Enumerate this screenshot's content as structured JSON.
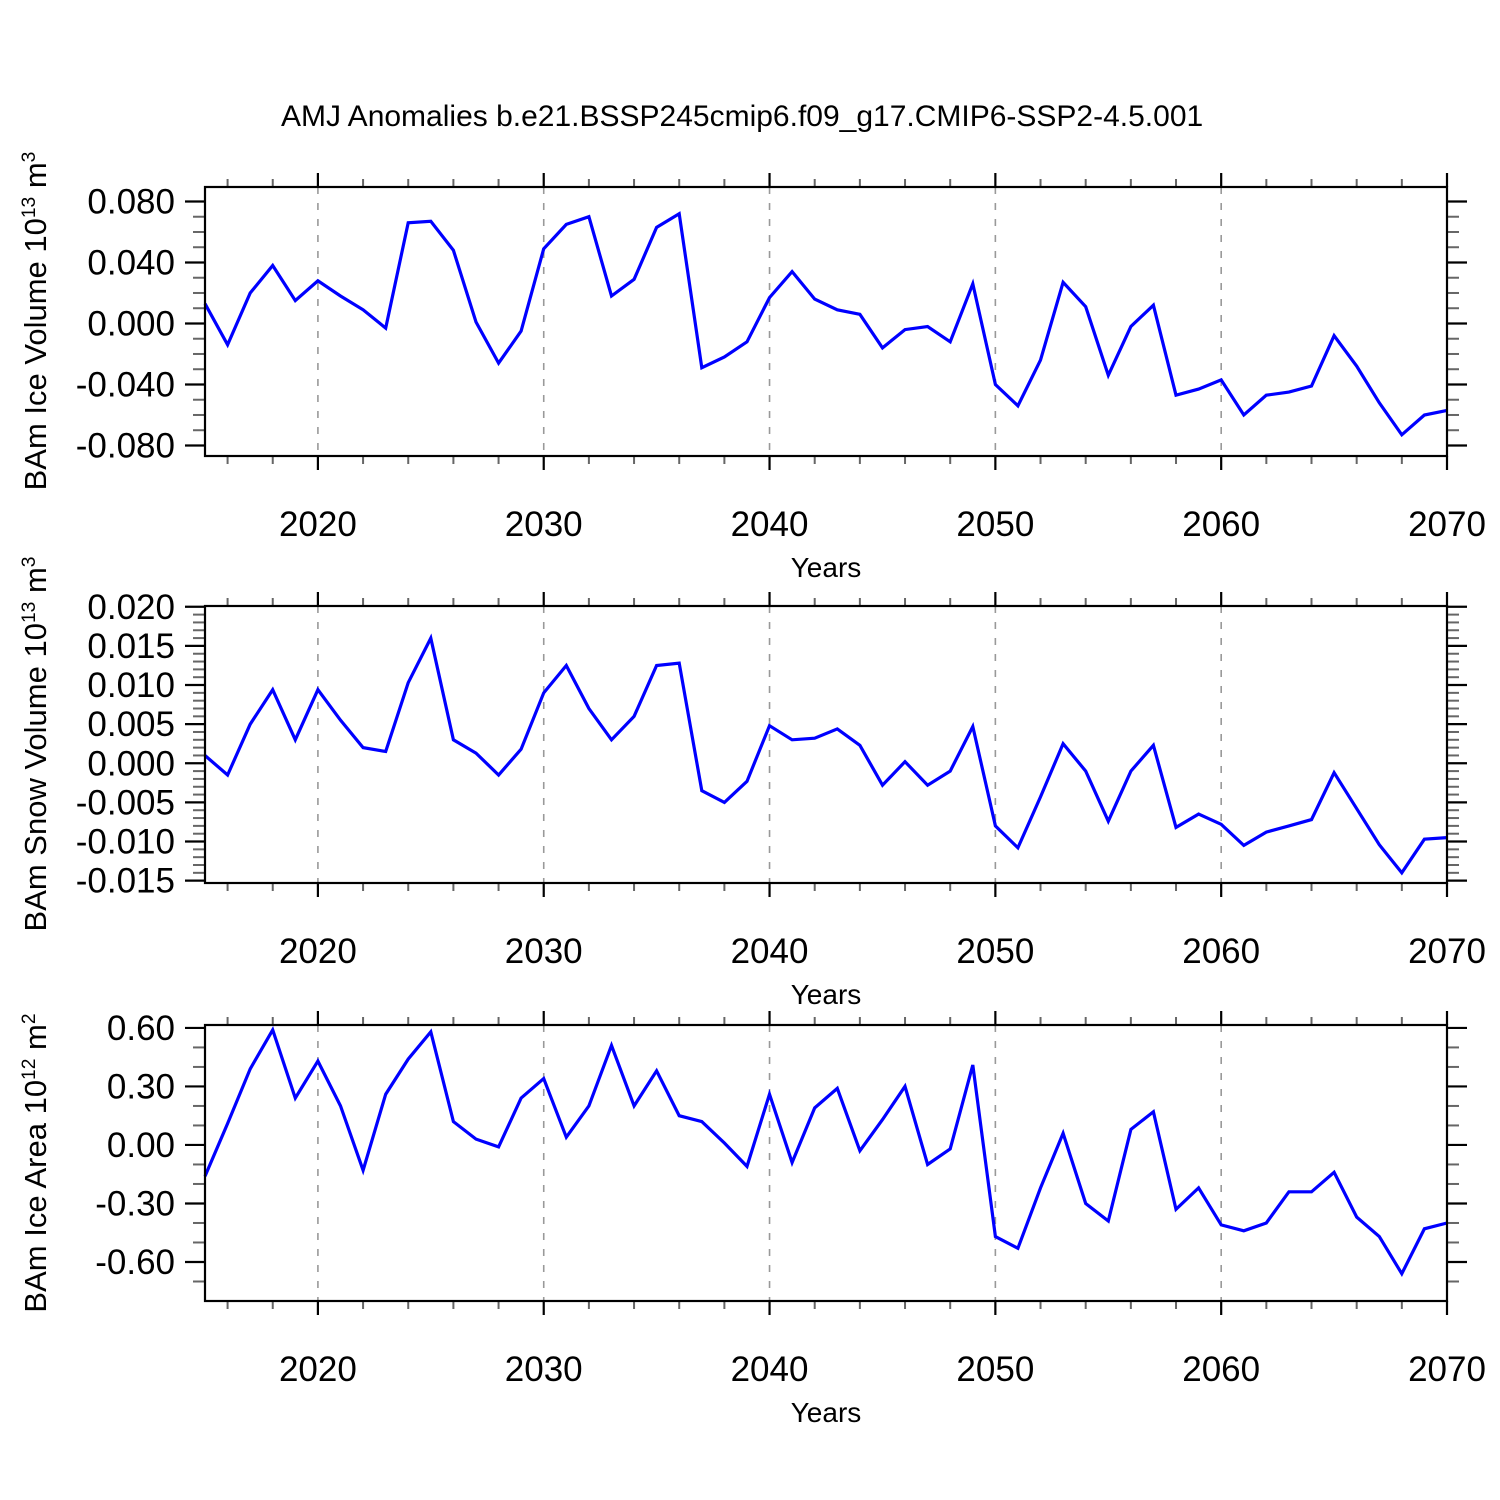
{
  "chart_data": {
    "type": "line",
    "title": "AMJ Anomalies b.e21.BSSP245cmip6.f09_g17.CMIP6-SSP2-4.5.001",
    "xlabel": "Years",
    "x_start": 2015,
    "x_end": 2070,
    "xticks": [
      2020,
      2030,
      2040,
      2050,
      2060,
      2070
    ],
    "xtick_labels": [
      "2020",
      "2030",
      "2040",
      "2050",
      "2060",
      "2070"
    ],
    "x_minor_step": 2,
    "gridline_years": [
      2020,
      2030,
      2040,
      2050,
      2060
    ],
    "line_color": "#0000ff",
    "gridline_color": "#999999",
    "axis_color": "#000000",
    "minor_tick_color": "#666666",
    "grid": true,
    "legend": "none",
    "panels": [
      {
        "name": "ice-volume",
        "ylabel_base": "BAm Ice Volume 10",
        "ylabel_exp": "13",
        "ylabel_unit": " m",
        "ylabel_unit_exp": "3",
        "ylim": [
          -0.0869,
          0.0895
        ],
        "yticks": [
          0.08,
          0.04,
          0.0,
          -0.04,
          -0.08
        ],
        "ytick_labels": [
          "0.080",
          "0.040",
          "0.000",
          "-0.040",
          "-0.080"
        ],
        "y_minor_step": 0.01,
        "values": [
          0.013,
          -0.014,
          0.02,
          0.038,
          0.015,
          0.028,
          0.018,
          0.009,
          -0.003,
          0.066,
          0.067,
          0.048,
          0.001,
          -0.026,
          -0.005,
          0.049,
          0.065,
          0.07,
          0.018,
          0.029,
          0.063,
          0.072,
          -0.029,
          -0.022,
          -0.012,
          0.017,
          0.034,
          0.016,
          0.009,
          0.006,
          -0.016,
          -0.004,
          -0.002,
          -0.012,
          0.026,
          -0.04,
          -0.054,
          -0.024,
          0.027,
          0.011,
          -0.034,
          -0.002,
          0.012,
          -0.047,
          -0.043,
          -0.037,
          -0.06,
          -0.047,
          -0.045,
          -0.041,
          -0.008,
          -0.028,
          -0.052,
          -0.073,
          -0.06,
          -0.057
        ]
      },
      {
        "name": "snow-volume",
        "ylabel_base": "BAm Snow Volume 10",
        "ylabel_exp": "13",
        "ylabel_unit": " m",
        "ylabel_unit_exp": "3",
        "ylim": [
          -0.0153,
          0.0201
        ],
        "yticks": [
          0.02,
          0.015,
          0.01,
          0.005,
          0.0,
          -0.005,
          -0.01,
          -0.015
        ],
        "ytick_labels": [
          "0.020",
          "0.015",
          "0.010",
          "0.005",
          "0.000",
          "-0.005",
          "-0.010",
          "-0.015"
        ],
        "y_minor_step": 0.001,
        "values": [
          0.001,
          -0.0015,
          0.005,
          0.0094,
          0.003,
          0.0094,
          0.0055,
          0.002,
          0.0015,
          0.0103,
          0.016,
          0.003,
          0.0013,
          -0.0015,
          0.0018,
          0.009,
          0.0125,
          0.007,
          0.003,
          0.006,
          0.0125,
          0.0128,
          -0.0035,
          -0.005,
          -0.0023,
          0.0048,
          0.003,
          0.0032,
          0.0044,
          0.0023,
          -0.0028,
          0.0002,
          -0.0028,
          -0.001,
          0.0047,
          -0.008,
          -0.0108,
          -0.0043,
          0.0025,
          -0.001,
          -0.0074,
          -0.001,
          0.0023,
          -0.0082,
          -0.0065,
          -0.0078,
          -0.0105,
          -0.0088,
          -0.008,
          -0.0072,
          -0.0012,
          -0.0058,
          -0.0104,
          -0.014,
          -0.0097,
          -0.0095
        ]
      },
      {
        "name": "ice-area",
        "ylabel_base": "BAm Ice Area 10",
        "ylabel_exp": "12",
        "ylabel_unit": " m",
        "ylabel_unit_exp": "2",
        "ylim": [
          -0.8,
          0.615
        ],
        "yticks": [
          0.6,
          0.3,
          0.0,
          -0.3,
          -0.6
        ],
        "ytick_labels": [
          "0.60",
          "0.30",
          "0.00",
          "-0.30",
          "-0.60"
        ],
        "y_minor_step": 0.1,
        "values": [
          -0.16,
          0.11,
          0.39,
          0.59,
          0.24,
          0.43,
          0.2,
          -0.13,
          0.26,
          0.44,
          0.58,
          0.12,
          0.03,
          -0.01,
          0.24,
          0.34,
          0.04,
          0.2,
          0.51,
          0.2,
          0.38,
          0.15,
          0.12,
          0.01,
          -0.11,
          0.26,
          -0.09,
          0.19,
          0.29,
          -0.03,
          0.13,
          0.3,
          -0.1,
          -0.02,
          0.41,
          -0.47,
          -0.53,
          -0.22,
          0.06,
          -0.3,
          -0.39,
          0.08,
          0.17,
          -0.33,
          -0.22,
          -0.41,
          -0.44,
          -0.4,
          -0.24,
          -0.24,
          -0.14,
          -0.37,
          -0.47,
          -0.66,
          -0.43,
          -0.4
        ]
      }
    ]
  }
}
